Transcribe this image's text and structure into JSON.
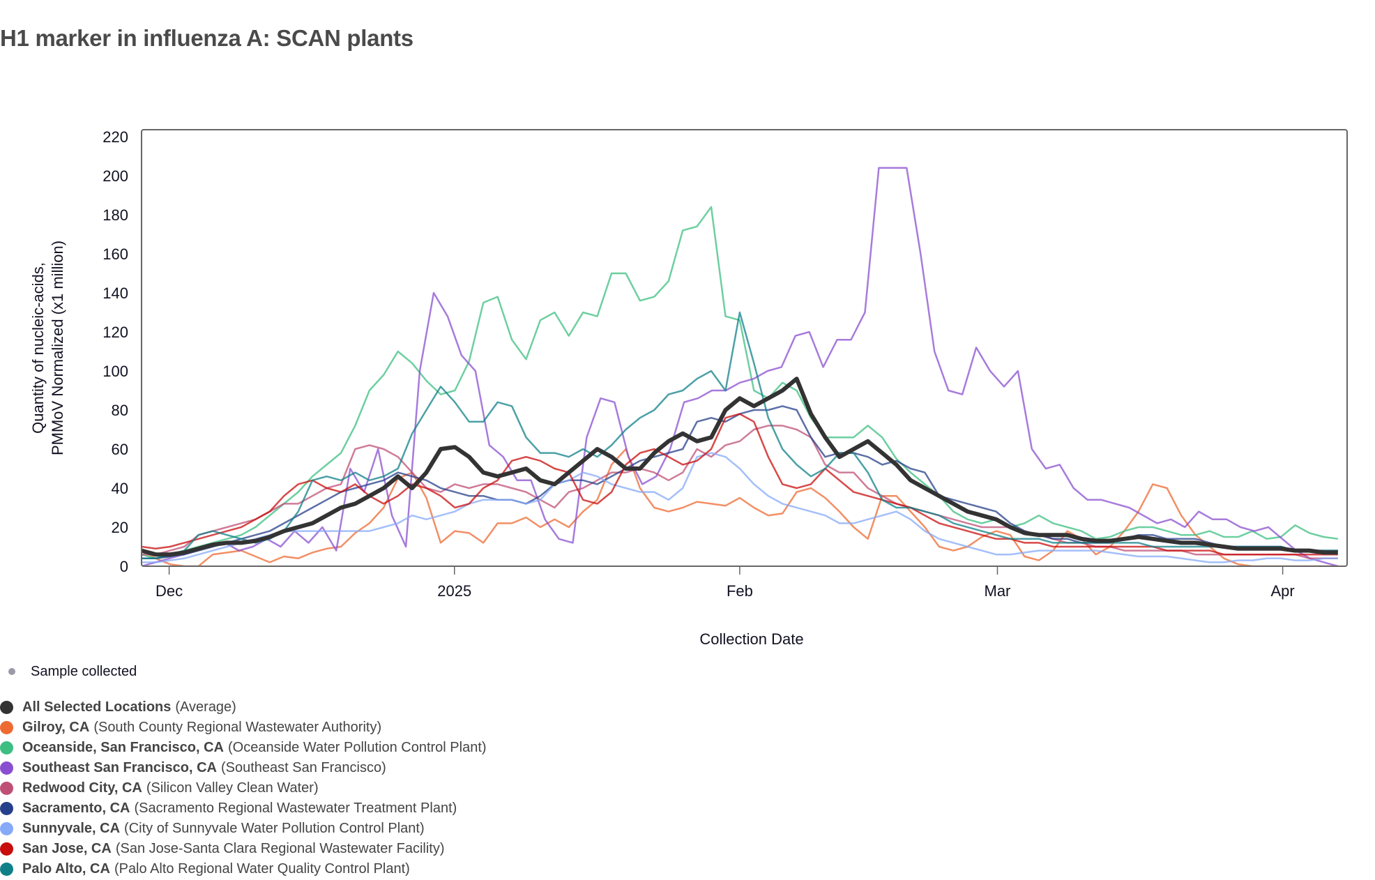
{
  "title": "H1 marker in influenza A: SCAN plants",
  "legend": {
    "sample_label": "Sample collected",
    "items": [
      {
        "name": "All Selected Locations",
        "facility": "(Average)",
        "color": "#333333"
      },
      {
        "name": "Gilroy, CA",
        "facility": "(South County Regional Wastewater Authority)",
        "color": "#ee6a32"
      },
      {
        "name": "Oceanside, San Francisco, CA",
        "facility": "(Oceanside Water Pollution Control Plant)",
        "color": "#3cbf80"
      },
      {
        "name": "Southeast San Francisco, CA",
        "facility": "(Southeast San Francisco)",
        "color": "#8a4fd0"
      },
      {
        "name": "Redwood City, CA",
        "facility": "(Silicon Valley Clean Water)",
        "color": "#bf5075"
      },
      {
        "name": "Sacramento, CA",
        "facility": "(Sacramento Regional Wastewater Treatment Plant)",
        "color": "#263f8a"
      },
      {
        "name": "Sunnyvale, CA",
        "facility": "(City of Sunnyvale Water Pollution Control Plant)",
        "color": "#86aaf8"
      },
      {
        "name": "San Jose, CA",
        "facility": "(San Jose-Santa Clara Regional Wastewater Facility)",
        "color": "#c90c0c"
      },
      {
        "name": "Palo Alto, CA",
        "facility": "(Palo Alto Regional Water Quality Control Plant)",
        "color": "#0f8088"
      }
    ]
  },
  "chart_data": {
    "type": "line",
    "title": "H1 marker in influenza A: SCAN plants",
    "xlabel": "Collection Date",
    "ylabel": [
      "Quantity of nucleic-acids,",
      "PMMoV Normalized (x1 million)"
    ],
    "ylim": [
      0,
      220
    ],
    "yticks": [
      0,
      20,
      40,
      60,
      80,
      100,
      120,
      140,
      160,
      180,
      200,
      220
    ],
    "x_start": "2024-11-28",
    "x_step_days": 2,
    "xlim_days": [
      0,
      131
    ],
    "xticks": [
      {
        "label": "Dec",
        "day": 3
      },
      {
        "label": "2025",
        "day": 34
      },
      {
        "label": "Feb",
        "day": 65
      },
      {
        "label": "Mar",
        "day": 93
      },
      {
        "label": "Apr",
        "day": 124
      }
    ],
    "grid": false,
    "legend_position": "bottom-left",
    "series": [
      {
        "name": "Gilroy, CA",
        "color": "#ee6a32",
        "width": 2.5,
        "values": [
          8,
          4,
          1,
          0,
          0,
          6,
          7,
          8,
          5,
          2,
          5,
          4,
          7,
          9,
          10,
          17,
          22,
          30,
          45,
          48,
          35,
          12,
          18,
          17,
          12,
          22,
          22,
          25,
          20,
          24,
          20,
          28,
          34,
          52,
          60,
          40,
          30,
          28,
          30,
          33,
          32,
          31,
          35,
          30,
          26,
          27,
          38,
          40,
          35,
          28,
          20,
          14,
          36,
          36,
          28,
          20,
          10,
          8,
          10,
          15,
          18,
          16,
          5,
          3,
          8,
          18,
          14,
          6,
          10,
          18,
          28,
          42,
          40,
          26,
          16,
          10,
          4,
          1,
          0,
          0,
          0,
          0,
          0,
          0,
          0
        ]
      },
      {
        "name": "Oceanside, San Francisco, CA",
        "color": "#3cbf80",
        "width": 2.5,
        "values": [
          6,
          4,
          5,
          8,
          10,
          12,
          14,
          16,
          20,
          26,
          32,
          38,
          46,
          52,
          58,
          72,
          90,
          98,
          110,
          104,
          95,
          88,
          90,
          105,
          135,
          138,
          116,
          106,
          126,
          130,
          118,
          130,
          128,
          150,
          150,
          136,
          138,
          146,
          172,
          174,
          184,
          128,
          126,
          90,
          86,
          94,
          90,
          76,
          66,
          66,
          66,
          72,
          66,
          55,
          48,
          42,
          36,
          28,
          24,
          22,
          24,
          20,
          22,
          26,
          22,
          20,
          18,
          14,
          15,
          18,
          20,
          20,
          18,
          16,
          16,
          18,
          15,
          15,
          18,
          14,
          15,
          21,
          17,
          15,
          14
        ]
      },
      {
        "name": "Southeast San Francisco, CA",
        "color": "#8a4fd0",
        "width": 2.5,
        "values": [
          0,
          2,
          4,
          6,
          8,
          10,
          12,
          8,
          10,
          14,
          10,
          18,
          12,
          20,
          8,
          50,
          38,
          60,
          26,
          10,
          100,
          140,
          128,
          108,
          100,
          62,
          56,
          44,
          44,
          24,
          14,
          12,
          66,
          86,
          84,
          56,
          42,
          46,
          60,
          84,
          86,
          90,
          90,
          94,
          96,
          100,
          102,
          118,
          120,
          102,
          116,
          116,
          130,
          204,
          204,
          204,
          160,
          110,
          90,
          88,
          112,
          100,
          92,
          100,
          60,
          50,
          52,
          40,
          34,
          34,
          32,
          30,
          26,
          22,
          24,
          20,
          28,
          24,
          24,
          20,
          18,
          20,
          14,
          8,
          4,
          2,
          0
        ]
      },
      {
        "name": "Redwood City, CA",
        "color": "#bf5075",
        "width": 2.5,
        "values": [
          6,
          6,
          8,
          10,
          16,
          18,
          20,
          22,
          24,
          28,
          32,
          32,
          36,
          40,
          42,
          60,
          62,
          60,
          56,
          48,
          40,
          38,
          42,
          40,
          42,
          42,
          40,
          38,
          34,
          30,
          38,
          40,
          44,
          48,
          48,
          50,
          48,
          44,
          48,
          60,
          56,
          62,
          64,
          70,
          72,
          72,
          70,
          66,
          52,
          48,
          48,
          40,
          36,
          32,
          30,
          28,
          26,
          24,
          22,
          20,
          20,
          20,
          18,
          16,
          14,
          12,
          12,
          10,
          10,
          8,
          8,
          8,
          8,
          8,
          6,
          6,
          6,
          6,
          6,
          6,
          6,
          6,
          4,
          4,
          4
        ]
      },
      {
        "name": "Sacramento, CA",
        "color": "#263f8a",
        "width": 2.5,
        "values": [
          4,
          4,
          5,
          6,
          8,
          10,
          12,
          14,
          16,
          18,
          22,
          26,
          30,
          34,
          38,
          40,
          42,
          44,
          48,
          46,
          44,
          40,
          38,
          36,
          36,
          34,
          34,
          32,
          36,
          42,
          44,
          44,
          42,
          46,
          50,
          54,
          56,
          58,
          60,
          74,
          76,
          74,
          78,
          80,
          80,
          82,
          80,
          66,
          56,
          58,
          58,
          56,
          52,
          54,
          50,
          48,
          36,
          34,
          32,
          30,
          28,
          22,
          18,
          16,
          14,
          14,
          12,
          12,
          12,
          14,
          16,
          16,
          14,
          14,
          14,
          12,
          10,
          10,
          10,
          10,
          10,
          8,
          8,
          8,
          8
        ]
      },
      {
        "name": "Sunnyvale, CA",
        "color": "#86aaf8",
        "width": 2.5,
        "values": [
          2,
          2,
          3,
          4,
          6,
          8,
          10,
          12,
          14,
          16,
          18,
          18,
          18,
          18,
          18,
          18,
          18,
          20,
          22,
          26,
          24,
          26,
          28,
          32,
          34,
          34,
          34,
          32,
          34,
          42,
          44,
          48,
          46,
          42,
          40,
          38,
          38,
          34,
          40,
          56,
          58,
          56,
          50,
          42,
          36,
          32,
          30,
          28,
          26,
          22,
          22,
          24,
          26,
          28,
          24,
          18,
          14,
          12,
          10,
          8,
          6,
          6,
          7,
          8,
          8,
          8,
          8,
          8,
          7,
          6,
          5,
          5,
          5,
          4,
          3,
          2,
          2,
          3,
          3,
          4,
          4,
          3,
          3,
          4,
          4
        ]
      },
      {
        "name": "San Jose, CA",
        "color": "#c90c0c",
        "width": 2.5,
        "values": [
          10,
          9,
          10,
          12,
          14,
          16,
          18,
          20,
          24,
          28,
          36,
          42,
          44,
          40,
          38,
          42,
          36,
          32,
          36,
          42,
          40,
          36,
          30,
          32,
          40,
          44,
          54,
          56,
          54,
          50,
          48,
          34,
          32,
          38,
          52,
          58,
          60,
          56,
          52,
          54,
          60,
          76,
          78,
          74,
          56,
          42,
          40,
          42,
          50,
          44,
          38,
          36,
          34,
          32,
          30,
          26,
          22,
          20,
          18,
          16,
          14,
          14,
          12,
          12,
          10,
          10,
          10,
          10,
          10,
          10,
          10,
          10,
          8,
          8,
          8,
          8,
          6,
          6,
          6,
          6,
          6,
          6,
          6,
          6,
          6
        ]
      },
      {
        "name": "Palo Alto, CA",
        "color": "#0f8088",
        "width": 2.5,
        "values": [
          4,
          4,
          6,
          8,
          16,
          18,
          16,
          14,
          12,
          14,
          18,
          28,
          44,
          46,
          44,
          48,
          44,
          46,
          50,
          68,
          80,
          92,
          84,
          74,
          74,
          84,
          82,
          66,
          58,
          58,
          56,
          60,
          56,
          62,
          70,
          76,
          80,
          88,
          90,
          96,
          100,
          90,
          130,
          104,
          76,
          60,
          52,
          46,
          50,
          58,
          58,
          48,
          34,
          30,
          30,
          28,
          26,
          22,
          20,
          18,
          16,
          14,
          14,
          14,
          12,
          12,
          12,
          12,
          12,
          12,
          12,
          10,
          10,
          10,
          10,
          10,
          10,
          10,
          10,
          10,
          10,
          8,
          8,
          8,
          8
        ]
      },
      {
        "name": "All Selected Locations (Average)",
        "color": "#333333",
        "width": 6,
        "values": [
          8,
          6,
          6,
          7,
          9,
          11,
          12,
          12,
          13,
          15,
          18,
          20,
          22,
          26,
          30,
          32,
          36,
          40,
          46,
          40,
          48,
          60,
          61,
          56,
          48,
          46,
          48,
          50,
          44,
          42,
          48,
          54,
          60,
          56,
          50,
          50,
          58,
          64,
          68,
          64,
          66,
          80,
          86,
          82,
          86,
          90,
          96,
          78,
          66,
          56,
          60,
          64,
          58,
          52,
          44,
          40,
          36,
          32,
          28,
          26,
          24,
          20,
          17,
          16,
          16,
          16,
          14,
          13,
          13,
          14,
          15,
          14,
          13,
          12,
          12,
          11,
          10,
          9,
          9,
          9,
          9,
          8,
          8,
          7,
          7
        ]
      }
    ]
  }
}
